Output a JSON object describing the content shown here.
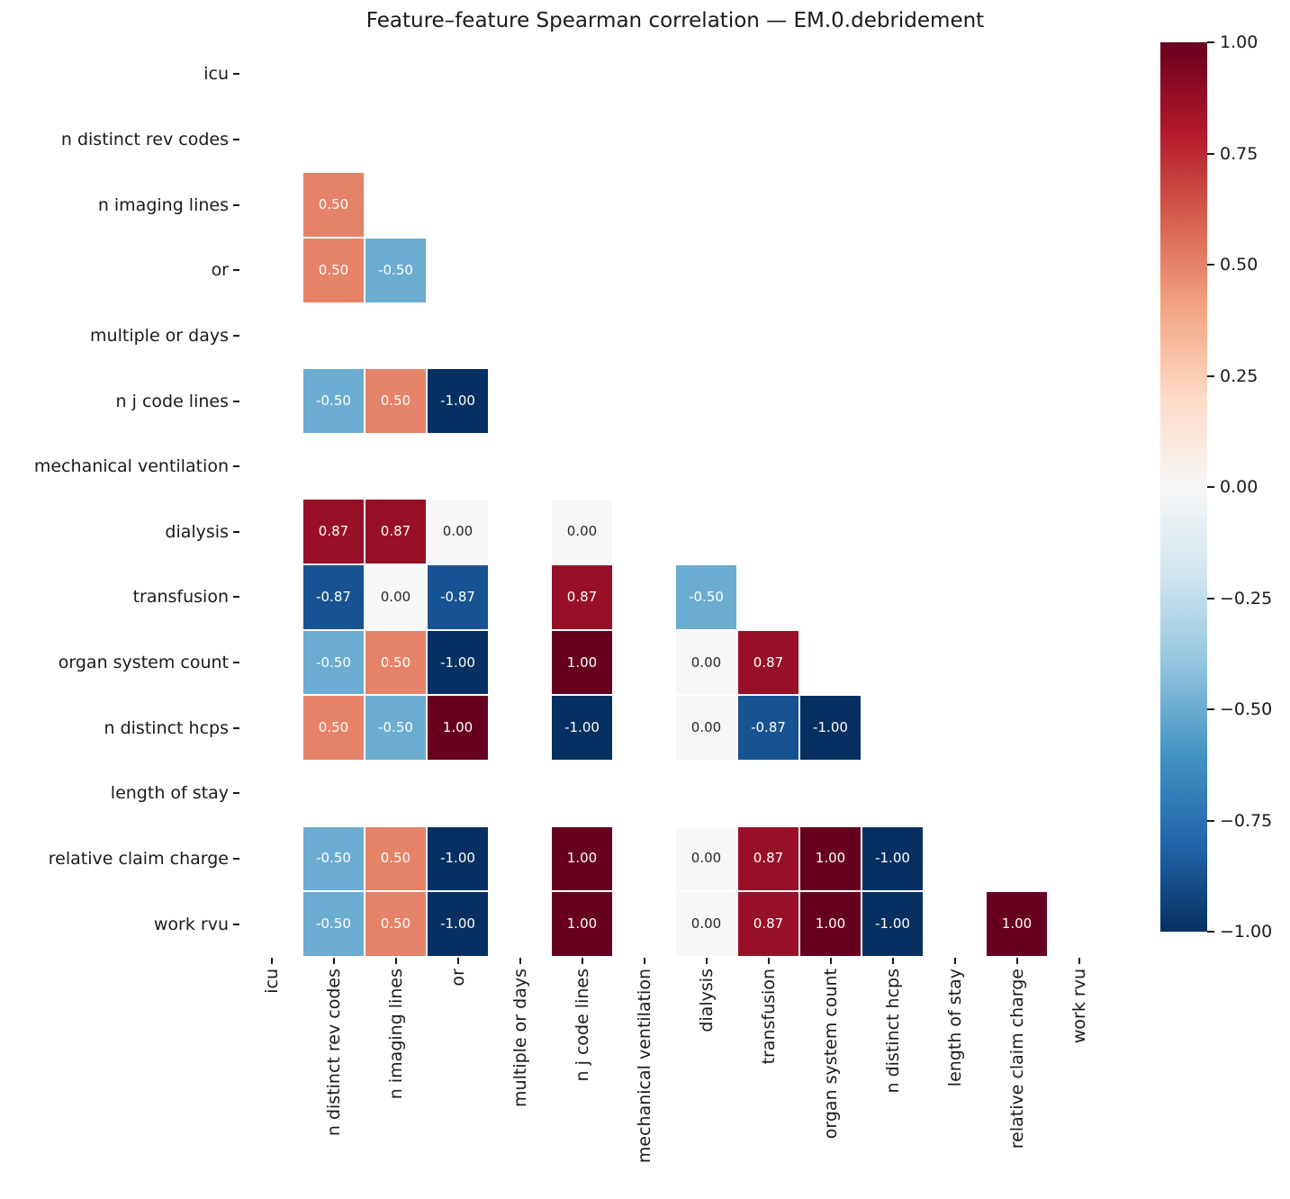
{
  "title": "Feature–feature Spearman correlation — EM.0.debridement",
  "chart_data": {
    "type": "heatmap",
    "title": "Feature–feature Spearman correlation — EM.0.debridement",
    "subtitle": "",
    "features": [
      "icu",
      "n distinct rev codes",
      "n imaging lines",
      "or",
      "multiple or days",
      "n j code lines",
      "mechanical ventilation",
      "dialysis",
      "transfusion",
      "organ system count",
      "n distinct hcps",
      "length of stay",
      "relative claim charge",
      "work rvu"
    ],
    "triangle": "lower",
    "cells": [
      {
        "row": "n imaging lines",
        "col": "n distinct rev codes",
        "value": 0.5
      },
      {
        "row": "or",
        "col": "n distinct rev codes",
        "value": 0.5
      },
      {
        "row": "or",
        "col": "n imaging lines",
        "value": -0.5
      },
      {
        "row": "n j code lines",
        "col": "n distinct rev codes",
        "value": -0.5
      },
      {
        "row": "n j code lines",
        "col": "n imaging lines",
        "value": 0.5
      },
      {
        "row": "n j code lines",
        "col": "or",
        "value": -1.0
      },
      {
        "row": "dialysis",
        "col": "n distinct rev codes",
        "value": 0.87
      },
      {
        "row": "dialysis",
        "col": "n imaging lines",
        "value": 0.87
      },
      {
        "row": "dialysis",
        "col": "or",
        "value": 0.0
      },
      {
        "row": "dialysis",
        "col": "n j code lines",
        "value": 0.0
      },
      {
        "row": "transfusion",
        "col": "n distinct rev codes",
        "value": -0.87
      },
      {
        "row": "transfusion",
        "col": "n imaging lines",
        "value": 0.0
      },
      {
        "row": "transfusion",
        "col": "or",
        "value": -0.87
      },
      {
        "row": "transfusion",
        "col": "n j code lines",
        "value": 0.87
      },
      {
        "row": "transfusion",
        "col": "dialysis",
        "value": -0.5
      },
      {
        "row": "organ system count",
        "col": "n distinct rev codes",
        "value": -0.5
      },
      {
        "row": "organ system count",
        "col": "n imaging lines",
        "value": 0.5
      },
      {
        "row": "organ system count",
        "col": "or",
        "value": -1.0
      },
      {
        "row": "organ system count",
        "col": "n j code lines",
        "value": 1.0
      },
      {
        "row": "organ system count",
        "col": "dialysis",
        "value": 0.0
      },
      {
        "row": "organ system count",
        "col": "transfusion",
        "value": 0.87
      },
      {
        "row": "n distinct hcps",
        "col": "n distinct rev codes",
        "value": 0.5
      },
      {
        "row": "n distinct hcps",
        "col": "n imaging lines",
        "value": -0.5
      },
      {
        "row": "n distinct hcps",
        "col": "or",
        "value": 1.0
      },
      {
        "row": "n distinct hcps",
        "col": "n j code lines",
        "value": -1.0
      },
      {
        "row": "n distinct hcps",
        "col": "dialysis",
        "value": 0.0
      },
      {
        "row": "n distinct hcps",
        "col": "transfusion",
        "value": -0.87
      },
      {
        "row": "n distinct hcps",
        "col": "organ system count",
        "value": -1.0
      },
      {
        "row": "relative claim charge",
        "col": "n distinct rev codes",
        "value": -0.5
      },
      {
        "row": "relative claim charge",
        "col": "n imaging lines",
        "value": 0.5
      },
      {
        "row": "relative claim charge",
        "col": "or",
        "value": -1.0
      },
      {
        "row": "relative claim charge",
        "col": "n j code lines",
        "value": 1.0
      },
      {
        "row": "relative claim charge",
        "col": "dialysis",
        "value": 0.0
      },
      {
        "row": "relative claim charge",
        "col": "transfusion",
        "value": 0.87
      },
      {
        "row": "relative claim charge",
        "col": "organ system count",
        "value": 1.0
      },
      {
        "row": "relative claim charge",
        "col": "n distinct hcps",
        "value": -1.0
      },
      {
        "row": "work rvu",
        "col": "n distinct rev codes",
        "value": -0.5
      },
      {
        "row": "work rvu",
        "col": "n imaging lines",
        "value": 0.5
      },
      {
        "row": "work rvu",
        "col": "or",
        "value": -1.0
      },
      {
        "row": "work rvu",
        "col": "n j code lines",
        "value": 1.0
      },
      {
        "row": "work rvu",
        "col": "dialysis",
        "value": 0.0
      },
      {
        "row": "work rvu",
        "col": "transfusion",
        "value": 0.87
      },
      {
        "row": "work rvu",
        "col": "organ system count",
        "value": 1.0
      },
      {
        "row": "work rvu",
        "col": "n distinct hcps",
        "value": -1.0
      },
      {
        "row": "work rvu",
        "col": "relative claim charge",
        "value": 1.0
      }
    ],
    "value_precision": 2,
    "colorbar": {
      "min": -1.0,
      "max": 1.0,
      "colormap": "RdBu_r",
      "stops_bottom_to_top": [
        "#053061",
        "#2166ac",
        "#4393c3",
        "#92c5de",
        "#d1e5f0",
        "#f7f7f7",
        "#fddbc7",
        "#f4a582",
        "#d6604d",
        "#b2182b",
        "#67001f"
      ],
      "ticks": [
        {
          "value": 1.0,
          "label": "1.00"
        },
        {
          "value": 0.75,
          "label": "0.75"
        },
        {
          "value": 0.5,
          "label": "0.50"
        },
        {
          "value": 0.25,
          "label": "0.25"
        },
        {
          "value": 0.0,
          "label": "0.00"
        },
        {
          "value": -0.25,
          "label": "−0.25"
        },
        {
          "value": -0.5,
          "label": "−0.50"
        },
        {
          "value": -0.75,
          "label": "−0.75"
        },
        {
          "value": -1.0,
          "label": "−1.00"
        }
      ]
    },
    "colors": {
      "background": "#ffffff",
      "grid_line": "#ffffff",
      "annot_text_dark": "#262626",
      "annot_text_light": "#ffffff",
      "axis_text": "#1a1a1a"
    }
  }
}
